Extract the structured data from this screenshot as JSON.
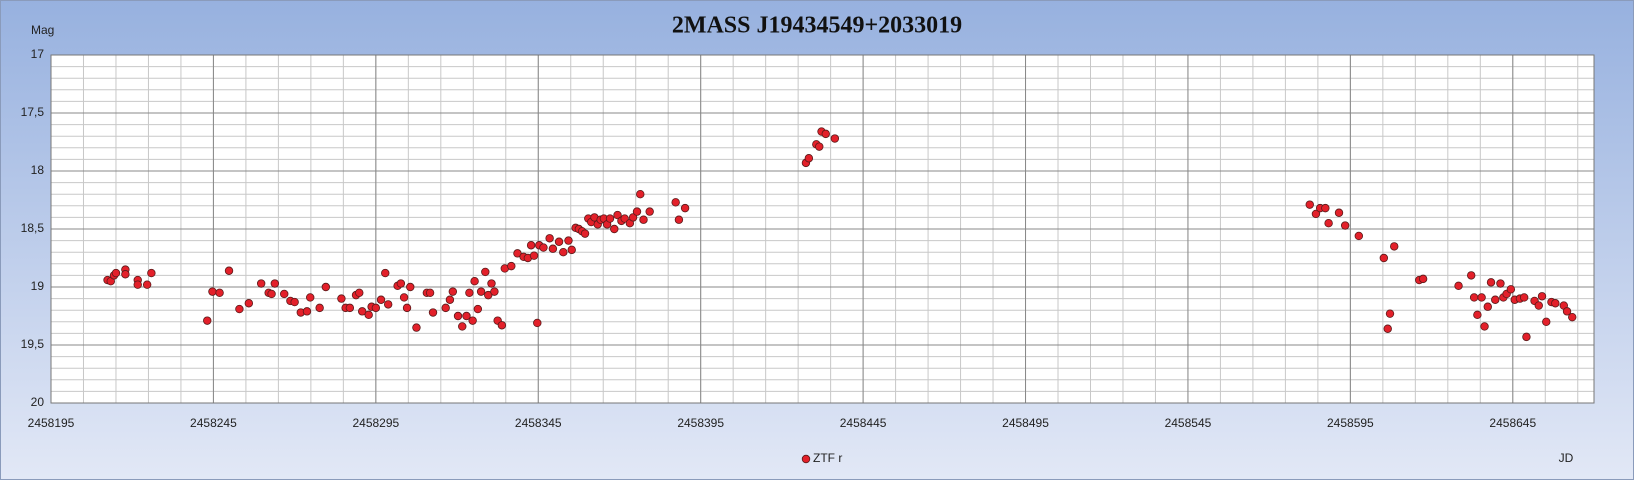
{
  "chart_data": {
    "type": "scatter",
    "title": "2MASS J19434549+2033019",
    "y_label": "Mag",
    "x_label": "JD",
    "xlim": [
      2458195,
      2458670
    ],
    "xticks": [
      2458195,
      2458245,
      2458295,
      2458345,
      2458395,
      2458445,
      2458495,
      2458545,
      2458595,
      2458645
    ],
    "ylim": [
      17,
      20
    ],
    "y_inverted": true,
    "yticks": [
      17,
      {
        "value": 17.5,
        "label": "17,5"
      },
      18,
      {
        "value": 18.5,
        "label": "18,5"
      },
      19,
      {
        "value": 19.5,
        "label": "19,5"
      },
      20
    ],
    "grid": true,
    "legend": "bottom",
    "x": [
      2458212.4,
      2458213.4,
      2458214.4,
      2458215.0,
      2458217.9,
      2458217.9,
      2458221.7,
      2458221.7,
      2458224.6,
      2458225.9,
      2458243.1,
      2458244.7,
      2458246.9,
      2458249.8,
      2458253.0,
      2458255.9,
      2458259.7,
      2458262.0,
      2458262.9,
      2458263.9,
      2458266.8,
      2458268.7,
      2458270.0,
      2458271.9,
      2458273.8,
      2458274.8,
      2458277.7,
      2458279.6,
      2458284.4,
      2458285.7,
      2458287.0,
      2458288.9,
      2458289.9,
      2458290.8,
      2458292.8,
      2458293.7,
      2458295.0,
      2458296.6,
      2458297.9,
      2458298.8,
      2458301.7,
      2458302.7,
      2458303.7,
      2458304.6,
      2458305.6,
      2458307.5,
      2458310.7,
      2458311.7,
      2458312.6,
      2458316.5,
      2458317.8,
      2458318.7,
      2458320.3,
      2458321.6,
      2458322.9,
      2458323.8,
      2458324.8,
      2458325.4,
      2458326.4,
      2458327.4,
      2458328.7,
      2458329.6,
      2458330.6,
      2458331.5,
      2458332.5,
      2458333.8,
      2458334.7,
      2458336.7,
      2458338.6,
      2458340.5,
      2458341.8,
      2458342.8,
      2458343.7,
      2458344.7,
      2458345.3,
      2458346.6,
      2458348.5,
      2458349.5,
      2458351.4,
      2458352.7,
      2458354.3,
      2458355.3,
      2458356.5,
      2458357.5,
      2458358.5,
      2458359.4,
      2458360.4,
      2458361.3,
      2458362.3,
      2458363.3,
      2458364.2,
      2458365.2,
      2458366.2,
      2458367.1,
      2458368.4,
      2458369.4,
      2458370.6,
      2458371.6,
      2458373.2,
      2458374.2,
      2458375.4,
      2458376.4,
      2458377.4,
      2458379.3,
      2458387.3,
      2458388.3,
      2458390.2,
      2458427.4,
      2458428.3,
      2458430.6,
      2458431.5,
      2458432.2,
      2458433.5,
      2458436.3,
      2458582.5,
      2458584.4,
      2458585.7,
      2458587.3,
      2458588.3,
      2458591.5,
      2458593.4,
      2458597.6,
      2458605.3,
      2458606.5,
      2458607.2,
      2458608.5,
      2458616.2,
      2458617.4,
      2458628.3,
      2458632.2,
      2458633.1,
      2458634.1,
      2458635.4,
      2458636.3,
      2458637.3,
      2458638.3,
      2458639.6,
      2458641.2,
      2458642.1,
      2458643.1,
      2458644.4,
      2458645.6,
      2458647.2,
      2458648.5,
      2458649.2,
      2458651.7,
      2458653.0,
      2458654.0,
      2458655.3,
      2458656.9,
      2458658.1,
      2458660.7,
      2458661.7,
      2458663.3
    ],
    "series": [
      {
        "name": "ZTF r",
        "color": "#e3202a",
        "values": [
          18.94,
          18.95,
          18.9,
          18.88,
          18.85,
          18.89,
          18.94,
          18.98,
          18.98,
          18.88,
          19.29,
          19.04,
          19.05,
          18.86,
          19.19,
          19.14,
          18.97,
          19.05,
          19.06,
          18.97,
          19.06,
          19.12,
          19.13,
          19.22,
          19.21,
          19.09,
          19.18,
          19.0,
          19.1,
          19.18,
          19.18,
          19.07,
          19.05,
          19.21,
          19.24,
          19.17,
          19.18,
          19.11,
          18.88,
          19.15,
          18.99,
          18.97,
          19.09,
          19.18,
          19.0,
          19.35,
          19.05,
          19.05,
          19.22,
          19.18,
          19.11,
          19.04,
          19.25,
          19.34,
          19.25,
          19.05,
          19.29,
          18.95,
          19.19,
          19.04,
          18.87,
          19.07,
          18.97,
          19.04,
          19.29,
          19.33,
          18.84,
          18.82,
          18.71,
          18.74,
          18.75,
          18.64,
          18.73,
          19.31,
          18.64,
          18.66,
          18.58,
          18.67,
          18.61,
          18.7,
          18.6,
          18.68,
          18.49,
          18.5,
          18.52,
          18.54,
          18.41,
          18.44,
          18.4,
          18.46,
          18.42,
          18.41,
          18.46,
          18.41,
          18.5,
          18.38,
          18.43,
          18.41,
          18.45,
          18.4,
          18.35,
          18.2,
          18.42,
          18.35,
          18.27,
          18.42,
          18.32,
          17.93,
          17.89,
          17.77,
          17.79,
          17.66,
          17.68,
          17.72,
          18.29,
          18.37,
          18.32,
          18.32,
          18.45,
          18.36,
          18.47,
          18.56,
          18.75,
          19.36,
          19.23,
          18.65,
          18.94,
          18.93,
          18.99,
          18.9,
          19.09,
          19.24,
          19.09,
          19.34,
          19.17,
          18.96,
          19.11,
          18.97,
          19.09,
          19.06,
          19.02,
          19.11,
          19.1,
          19.09,
          19.43,
          19.12,
          19.16,
          19.08,
          19.3,
          19.13,
          19.14,
          19.16,
          19.21,
          19.26
        ]
      }
    ]
  }
}
